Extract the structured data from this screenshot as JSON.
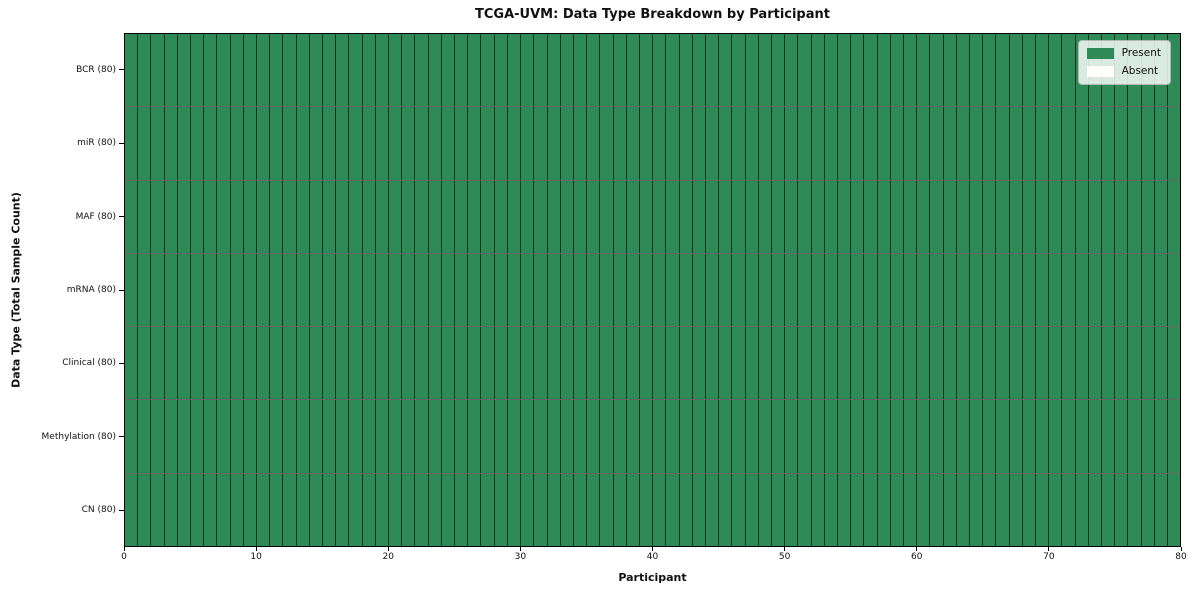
{
  "chart_data": {
    "type": "heatmap",
    "title": "TCGA-UVM: Data Type Breakdown by Participant",
    "xlabel": "Participant",
    "ylabel": "Data Type (Total Sample Count)",
    "xlim": [
      0,
      80
    ],
    "x_ticks": [
      0,
      10,
      20,
      30,
      40,
      50,
      60,
      70,
      80
    ],
    "n_participants": 80,
    "grid": true,
    "rows": [
      {
        "label": "BCR (80)",
        "data_type": "BCR",
        "total_samples": 80,
        "present_count": 80
      },
      {
        "label": "miR (80)",
        "data_type": "miR",
        "total_samples": 80,
        "present_count": 80
      },
      {
        "label": "MAF (80)",
        "data_type": "MAF",
        "total_samples": 80,
        "present_count": 80
      },
      {
        "label": "mRNA (80)",
        "data_type": "mRNA",
        "total_samples": 80,
        "present_count": 80
      },
      {
        "label": "Clinical (80)",
        "data_type": "Clinical",
        "total_samples": 80,
        "present_count": 80
      },
      {
        "label": "Methylation (80)",
        "data_type": "Methylation",
        "total_samples": 80,
        "present_count": 80
      },
      {
        "label": "CN (80)",
        "data_type": "CN",
        "total_samples": 80,
        "present_count": 80
      }
    ],
    "legend": {
      "position": "upper right",
      "entries": [
        {
          "label": "Present",
          "state": "present",
          "color": "#2e8b57"
        },
        {
          "label": "Absent",
          "state": "absent",
          "color": "#ffffff"
        }
      ]
    },
    "colors": {
      "present": "#2e8b57",
      "absent": "#ffffff",
      "cell_edge": "rgba(0,0,0,0.6)",
      "spine": "#000000"
    }
  }
}
